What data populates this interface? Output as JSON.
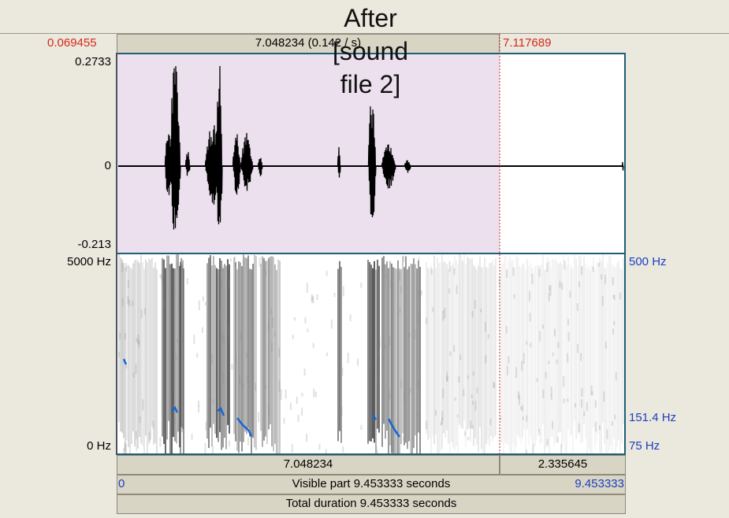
{
  "title": "After [sound file 2]",
  "top_bar": {
    "left_time": "0.069455",
    "selection": "7.048234 (0.142 / s)",
    "right_time": "7.117689"
  },
  "waveform": {
    "y_max": "0.2733",
    "y_zero": "0",
    "y_min": "-0.213"
  },
  "spectrogram": {
    "freq_max": "5000 Hz",
    "freq_min": "0 Hz",
    "pitch_max": "500 Hz",
    "pitch_cursor": "151.4 Hz",
    "pitch_min": "75 Hz"
  },
  "bottom_bars": {
    "selection_duration": "7.048234",
    "rest_duration": "2.335645",
    "visible_start": "0",
    "visible_part": "Visible part 9.453333 seconds",
    "visible_end": "9.453333",
    "total": "Total duration 9.453333 seconds"
  }
}
